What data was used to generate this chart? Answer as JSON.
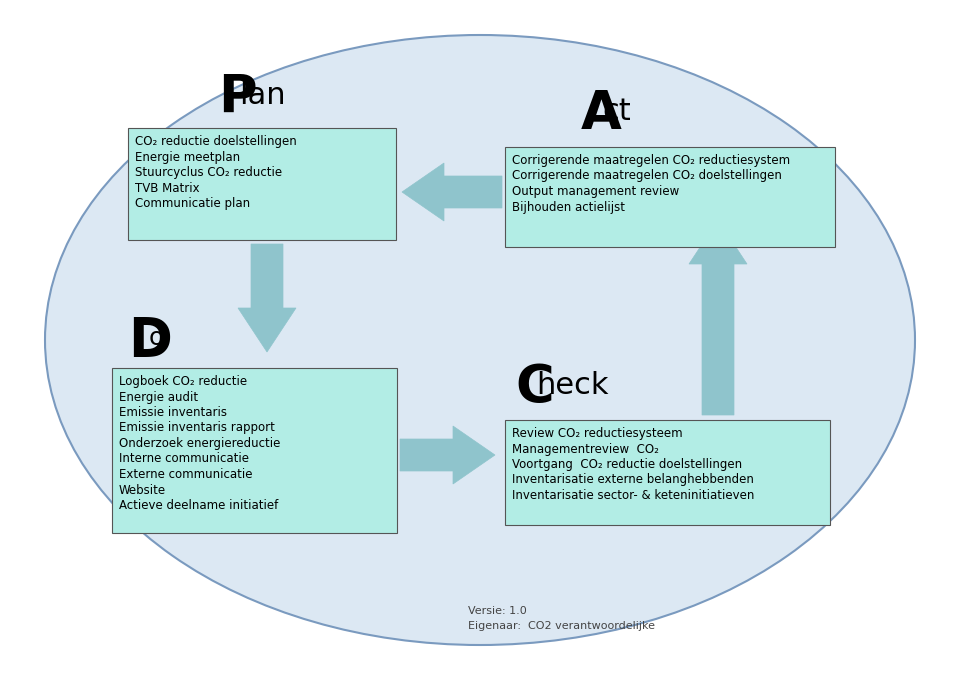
{
  "bg_color": "#ffffff",
  "ellipse_color": "#dce8f3",
  "ellipse_edge": "#7a9abf",
  "box_color": "#b2ede5",
  "box_edge": "#555555",
  "arrow_color": "#8fc4cc",
  "arrow_edge": "#8fc4cc",
  "title_color": "#000000",
  "text_color": "#000000",
  "plan_title": "P",
  "plan_sub": "lan",
  "act_title": "A",
  "act_sub": "ct",
  "do_title": "D",
  "do_sub": "o",
  "check_title": "C",
  "check_sub": "heck",
  "plan_box_lines": [
    "CO₂ reductie doelstellingen",
    "Energie meetplan",
    "Stuurcyclus CO₂ reductie",
    "TVB Matrix",
    "Communicatie plan"
  ],
  "act_box_lines": [
    "Corrigerende maatregelen CO₂ reductiesystem",
    "Corrigerende maatregelen CO₂ doelstellingen",
    "Output management review",
    "Bijhouden actielijst"
  ],
  "do_box_lines": [
    "Logboek CO₂ reductie",
    "Energie audit",
    "Emissie inventaris",
    "Emissie inventaris rapport",
    "Onderzoek energiereductie",
    "Interne communicatie",
    "Externe communicatie",
    "Website",
    "Actieve deelname initiatief"
  ],
  "check_box_lines": [
    "Review CO₂ reductiesysteem",
    "Managementreview  CO₂",
    "Voortgang  CO₂ reductie doelstellingen",
    "Inventarisatie externe belanghebbenden",
    "Inventarisatie sector- & keteninitiatieven"
  ],
  "footer_line1": "Versie: 1.0",
  "footer_line2": "Eigenaar:  CO2 verantwoordelijke"
}
